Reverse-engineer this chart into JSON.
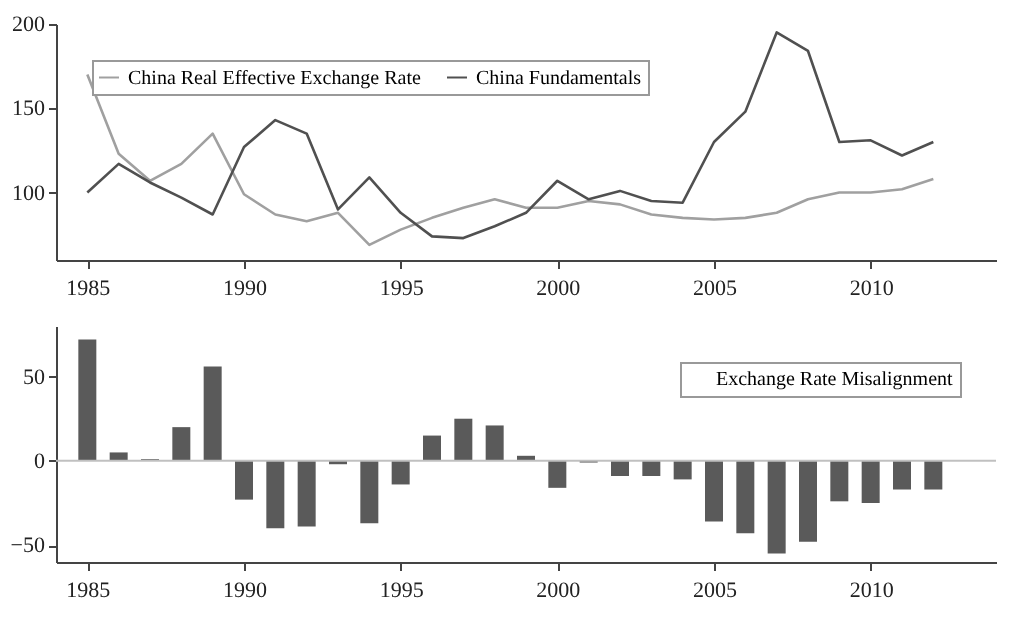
{
  "chart_data": [
    {
      "type": "line",
      "xlim": [
        1984,
        2014
      ],
      "xticks": [
        1985,
        1990,
        1995,
        2000,
        2005,
        2010
      ],
      "ylim": [
        60,
        200
      ],
      "yticks": [
        100,
        150,
        200
      ],
      "grid": false,
      "legend": "top left",
      "marker": "none",
      "line_style": "solid",
      "x": [
        1985,
        1986,
        1987,
        1988,
        1989,
        1990,
        1991,
        1992,
        1993,
        1994,
        1995,
        1996,
        1997,
        1998,
        1999,
        2000,
        2001,
        2002,
        2003,
        2004,
        2005,
        2006,
        2007,
        2008,
        2009,
        2010,
        2011,
        2012
      ],
      "series": [
        {
          "name": "China Real Effective Exchange Rate",
          "color": "#a0a0a0",
          "values": [
            170,
            123,
            107,
            117,
            135,
            99,
            87,
            83,
            88,
            69,
            78,
            85,
            91,
            96,
            91,
            91,
            95,
            93,
            87,
            85,
            84,
            85,
            88,
            96,
            100,
            100,
            102,
            108
          ]
        },
        {
          "name": "China Fundamentals",
          "color": "#505050",
          "values": [
            100,
            117,
            106,
            97,
            87,
            127,
            143,
            135,
            90,
            109,
            88,
            74,
            73,
            80,
            88,
            107,
            96,
            101,
            95,
            94,
            130,
            148,
            195,
            184,
            130,
            131,
            122,
            130
          ]
        }
      ]
    },
    {
      "type": "bar",
      "xlim": [
        1984,
        2014
      ],
      "xticks": [
        1985,
        1990,
        1995,
        2000,
        2005,
        2010
      ],
      "ylim": [
        -60,
        80
      ],
      "yticks": [
        -50,
        0,
        50
      ],
      "grid": false,
      "legend": "top right",
      "x": [
        1985,
        1986,
        1987,
        1988,
        1989,
        1990,
        1991,
        1992,
        1993,
        1994,
        1995,
        1996,
        1997,
        1998,
        1999,
        2000,
        2001,
        2002,
        2003,
        2004,
        2005,
        2006,
        2007,
        2008,
        2009,
        2010,
        2011,
        2012
      ],
      "series": [
        {
          "name": "Exchange Rate Misalignment",
          "color": "#5a5a5a",
          "values": [
            72,
            5,
            1,
            20,
            56,
            -23,
            -40,
            -39,
            -2,
            -37,
            -14,
            15,
            25,
            21,
            3,
            -16,
            -1,
            -9,
            -9,
            -11,
            -36,
            -43,
            -55,
            -48,
            -24,
            -25,
            -17,
            -17
          ]
        }
      ],
      "ref_lines": [
        {
          "axis": "y",
          "value": 0,
          "color": "#c0c0c0"
        }
      ]
    }
  ]
}
